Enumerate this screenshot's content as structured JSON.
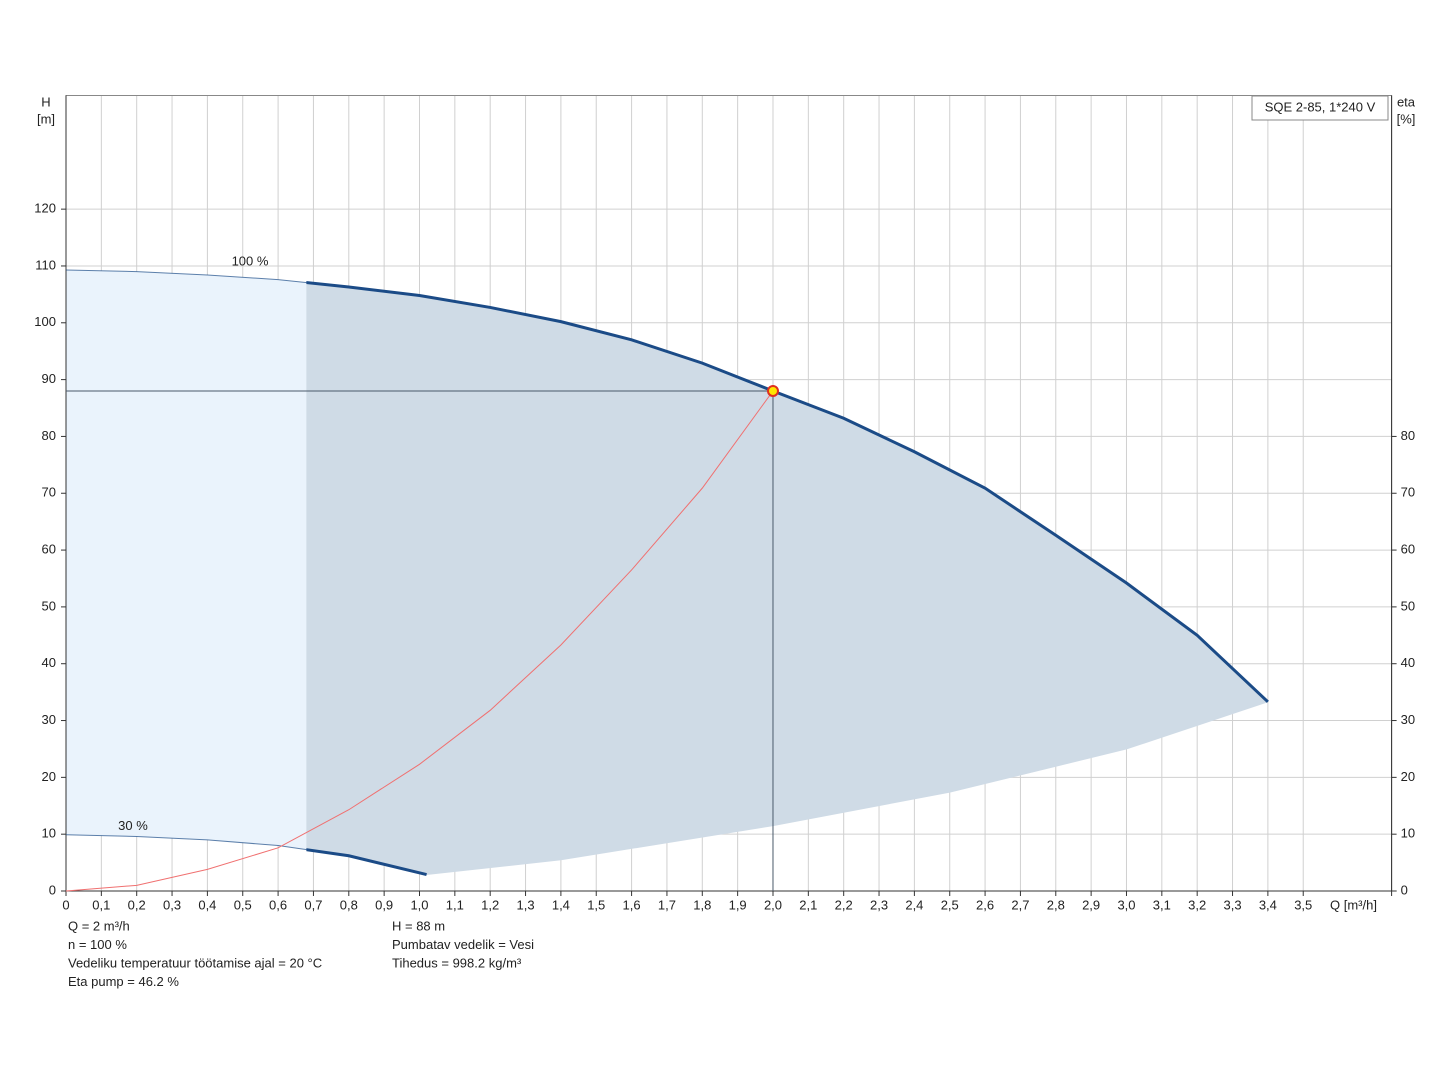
{
  "chart_data": {
    "type": "line",
    "title": "SQE 2-85, 1*240 V",
    "x_label": "Q [m³/h]",
    "y_label": "H",
    "y_unit": "[m]",
    "y2_label": "eta",
    "y2_unit": "[%]",
    "xlim": [
      0,
      3.75
    ],
    "ylim": [
      0,
      140
    ],
    "y2lim": [
      0,
      140
    ],
    "grid": true,
    "xticks": [
      0,
      {
        "value": 0.1,
        "label": "0,1"
      },
      {
        "value": 0.2,
        "label": "0,2"
      },
      {
        "value": 0.3,
        "label": "0,3"
      },
      {
        "value": 0.4,
        "label": "0,4"
      },
      {
        "value": 0.5,
        "label": "0,5"
      },
      {
        "value": 0.6,
        "label": "0,6"
      },
      {
        "value": 0.7,
        "label": "0,7"
      },
      {
        "value": 0.8,
        "label": "0,8"
      },
      {
        "value": 0.9,
        "label": "0,9"
      },
      {
        "value": 1.0,
        "label": "1,0"
      },
      {
        "value": 1.1,
        "label": "1,1"
      },
      {
        "value": 1.2,
        "label": "1,2"
      },
      {
        "value": 1.3,
        "label": "1,3"
      },
      {
        "value": 1.4,
        "label": "1,4"
      },
      {
        "value": 1.5,
        "label": "1,5"
      },
      {
        "value": 1.6,
        "label": "1,6"
      },
      {
        "value": 1.7,
        "label": "1,7"
      },
      {
        "value": 1.8,
        "label": "1,8"
      },
      {
        "value": 1.9,
        "label": "1,9"
      },
      {
        "value": 2.0,
        "label": "2,0"
      },
      {
        "value": 2.1,
        "label": "2,1"
      },
      {
        "value": 2.2,
        "label": "2,2"
      },
      {
        "value": 2.3,
        "label": "2,3"
      },
      {
        "value": 2.4,
        "label": "2,4"
      },
      {
        "value": 2.5,
        "label": "2,5"
      },
      {
        "value": 2.6,
        "label": "2,6"
      },
      {
        "value": 2.7,
        "label": "2,7"
      },
      {
        "value": 2.8,
        "label": "2,8"
      },
      {
        "value": 2.9,
        "label": "2,9"
      },
      {
        "value": 3.0,
        "label": "3,0"
      },
      {
        "value": 3.1,
        "label": "3,1"
      },
      {
        "value": 3.2,
        "label": "3,2"
      },
      {
        "value": 3.3,
        "label": "3,3"
      },
      {
        "value": 3.4,
        "label": "3,4"
      },
      {
        "value": 3.5,
        "label": "3,5"
      }
    ],
    "yticks": [
      0,
      10,
      20,
      30,
      40,
      50,
      60,
      70,
      80,
      90,
      100,
      110,
      120
    ],
    "y2ticks": [
      0,
      10,
      20,
      30,
      40,
      50,
      60,
      70,
      80
    ],
    "shaded_from_q": 0.68,
    "series": [
      {
        "name": "100 %",
        "color": "#1b4b87",
        "x": [
          0,
          0.2,
          0.4,
          0.6,
          0.8,
          1.0,
          1.2,
          1.4,
          1.6,
          1.8,
          2.0,
          2.2,
          2.4,
          2.6,
          2.8,
          3.0,
          3.2,
          3.4
        ],
        "values": [
          109.3,
          109.0,
          108.4,
          107.6,
          106.3,
          104.8,
          102.7,
          100.2,
          97.0,
          92.9,
          88.0,
          83.2,
          77.3,
          70.9,
          62.6,
          54.2,
          45.0,
          33.3
        ]
      },
      {
        "name": "30 %",
        "color": "#1b4b87",
        "x": [
          0,
          0.2,
          0.4,
          0.6,
          0.8,
          1.02
        ],
        "values": [
          9.9,
          9.6,
          9.0,
          8.0,
          6.2,
          2.9
        ]
      },
      {
        "color": "#cfdbe6",
        "x": [
          1.02,
          1.4,
          2.0,
          2.5,
          3.0,
          3.4
        ],
        "values": [
          2.9,
          5.5,
          11.5,
          17.4,
          25.0,
          33.3
        ]
      },
      {
        "color": "#f07070",
        "axis": "y2",
        "x": [
          0,
          0.2,
          0.4,
          0.6,
          0.8,
          1.0,
          1.2,
          1.4,
          1.6,
          1.8,
          2.0
        ],
        "values": [
          0,
          1.0,
          3.8,
          7.6,
          14.3,
          22.3,
          31.8,
          43.3,
          56.5,
          70.9,
          88.0
        ]
      }
    ],
    "operating_point": {
      "x": 2,
      "y": 88
    },
    "notes_left": [
      "Q = 2 m³/h",
      "n = 100 %",
      "Vedeliku temperatuur töötamise ajal = 20 °C",
      "Eta pump = 46.2 %"
    ],
    "notes_right": [
      "H = 88 m",
      "Pumbatav vedelik = Vesi",
      "Tihedus = 998.2 kg/m³"
    ]
  }
}
